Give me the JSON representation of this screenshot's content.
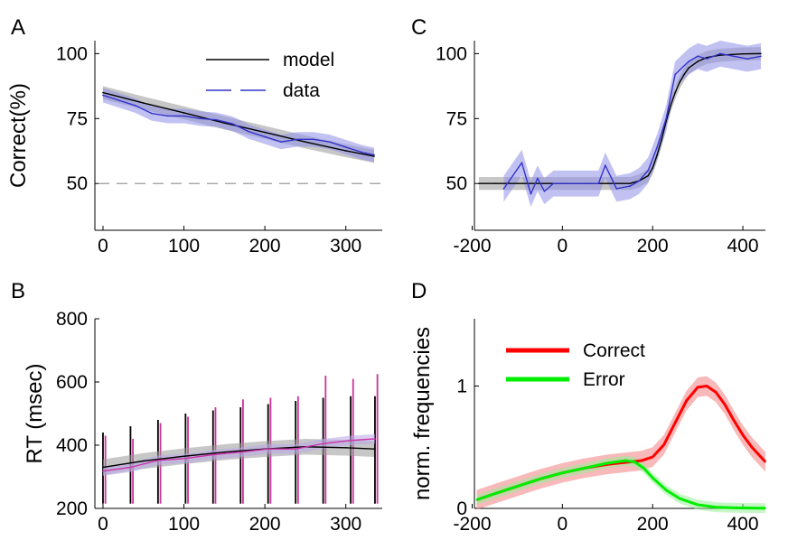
{
  "chart_data": [
    {
      "panel": "A",
      "type": "line",
      "ylabel": "Correct(%)",
      "xlim": [
        -10,
        345
      ],
      "ylim": [
        32,
        105
      ],
      "xticks": [
        0,
        100,
        200,
        300
      ],
      "yticks": [
        50,
        75,
        100
      ],
      "reference_line": 50,
      "legend": {
        "placement": "top-right",
        "entries": [
          "model",
          "data"
        ]
      },
      "series": [
        {
          "name": "model",
          "color": "#000000",
          "style": "solid",
          "band": 2.5,
          "x": [
            0,
            50,
            100,
            150,
            200,
            250,
            300,
            335
          ],
          "y": [
            85,
            81,
            77.2,
            73.3,
            69.7,
            66,
            62.6,
            60.5
          ]
        },
        {
          "name": "data",
          "color": "#3333cc",
          "style": "dashed",
          "band": 2.8,
          "x": [
            0,
            20,
            40,
            60,
            80,
            100,
            120,
            140,
            160,
            180,
            200,
            220,
            240,
            260,
            280,
            300,
            320,
            335
          ],
          "y": [
            84,
            82,
            80,
            77,
            76,
            76,
            75,
            74.5,
            73,
            70,
            68,
            66,
            67,
            67,
            66,
            64,
            62,
            61
          ]
        }
      ]
    },
    {
      "panel": "B",
      "type": "line",
      "ylabel": "RT (msec)",
      "xlim": [
        -10,
        345
      ],
      "ylim": [
        200,
        800
      ],
      "xticks": [
        0,
        100,
        200,
        300
      ],
      "yticks": [
        200,
        400,
        600,
        800
      ],
      "series": [
        {
          "name": "model",
          "color": "#000000",
          "band": 25,
          "x": [
            0,
            50,
            100,
            150,
            200,
            250,
            300,
            335
          ],
          "y": [
            330,
            350,
            365,
            378,
            388,
            395,
            392,
            388
          ]
        },
        {
          "name": "data",
          "color": "#cc33aa",
          "band": 15,
          "x": [
            0,
            34,
            68,
            102,
            136,
            170,
            204,
            238,
            272,
            306,
            336
          ],
          "y": [
            318,
            330,
            352,
            358,
            370,
            378,
            388,
            388,
            405,
            415,
            420
          ]
        }
      ],
      "error_bars": {
        "model": {
          "color": "#000000",
          "x": [
            0,
            34,
            68,
            102,
            136,
            170,
            204,
            238,
            272,
            306,
            336
          ],
          "low": [
            215,
            215,
            215,
            215,
            215,
            215,
            215,
            215,
            215,
            215,
            215
          ],
          "high": [
            440,
            460,
            480,
            500,
            510,
            520,
            530,
            540,
            550,
            555,
            555
          ]
        },
        "data": {
          "color": "#cc3399",
          "x": [
            3,
            37,
            71,
            105,
            139,
            173,
            207,
            241,
            275,
            309,
            339
          ],
          "low": [
            215,
            215,
            215,
            215,
            215,
            215,
            215,
            215,
            215,
            215,
            215
          ],
          "high": [
            430,
            420,
            470,
            490,
            520,
            545,
            550,
            555,
            620,
            610,
            625
          ]
        }
      }
    },
    {
      "panel": "C",
      "type": "line",
      "xlim": [
        -195,
        450
      ],
      "ylim": [
        32,
        105
      ],
      "xticks": [
        -200,
        0,
        200,
        400
      ],
      "yticks": [
        50,
        75,
        100
      ],
      "series": [
        {
          "name": "model",
          "color": "#000000",
          "band": 2.5,
          "x": [
            -185,
            -150,
            -100,
            -50,
            0,
            50,
            100,
            150,
            170,
            190,
            200,
            210,
            220,
            230,
            240,
            250,
            260,
            270,
            280,
            300,
            320,
            350,
            400,
            440
          ],
          "y": [
            50,
            50,
            50,
            50,
            50,
            50,
            50,
            50,
            51,
            53,
            56,
            61,
            67,
            74,
            80,
            85,
            89,
            92,
            94.5,
            97,
            98.5,
            99.4,
            99.9,
            100
          ]
        },
        {
          "name": "data",
          "color": "#3333cc",
          "band": 5,
          "x": [
            -130,
            -110,
            -90,
            -70,
            -55,
            -40,
            -20,
            0,
            40,
            80,
            95,
            120,
            150,
            170,
            190,
            210,
            230,
            250,
            280,
            300,
            320,
            350,
            380,
            410,
            440
          ],
          "y": [
            48,
            53,
            58,
            46,
            52,
            47,
            50,
            50,
            50,
            50,
            57,
            48,
            49,
            51,
            55,
            64,
            75,
            92,
            97,
            99,
            98,
            100,
            99,
            98,
            99
          ]
        }
      ]
    },
    {
      "panel": "D",
      "type": "line",
      "ylabel": "norm. frequencies",
      "xlim": [
        -195,
        450
      ],
      "ylim": [
        0,
        1.55
      ],
      "xticks": [
        -200,
        0,
        200,
        400
      ],
      "yticks": [
        0,
        1
      ],
      "legend": {
        "placement": "top-left",
        "entries": [
          "Correct",
          "Error"
        ]
      },
      "series": [
        {
          "name": "Correct",
          "color": "#ff0000",
          "band": 0.08,
          "x": [
            -190,
            -150,
            -100,
            -50,
            0,
            50,
            100,
            150,
            175,
            200,
            225,
            250,
            275,
            300,
            320,
            340,
            360,
            380,
            400,
            420,
            450
          ],
          "y": [
            0.07,
            0.12,
            0.18,
            0.24,
            0.29,
            0.33,
            0.36,
            0.38,
            0.39,
            0.42,
            0.52,
            0.7,
            0.88,
            0.99,
            1.0,
            0.95,
            0.85,
            0.72,
            0.6,
            0.5,
            0.38
          ]
        },
        {
          "name": "Error",
          "color": "#00ee00",
          "band": 0.04,
          "x": [
            -190,
            -150,
            -100,
            -50,
            0,
            50,
            100,
            140,
            160,
            180,
            200,
            230,
            260,
            300,
            340,
            380,
            420,
            450
          ],
          "y": [
            0.07,
            0.12,
            0.18,
            0.24,
            0.29,
            0.33,
            0.37,
            0.39,
            0.38,
            0.33,
            0.25,
            0.15,
            0.08,
            0.03,
            0.01,
            0.005,
            0.003,
            0.002
          ]
        }
      ]
    }
  ]
}
